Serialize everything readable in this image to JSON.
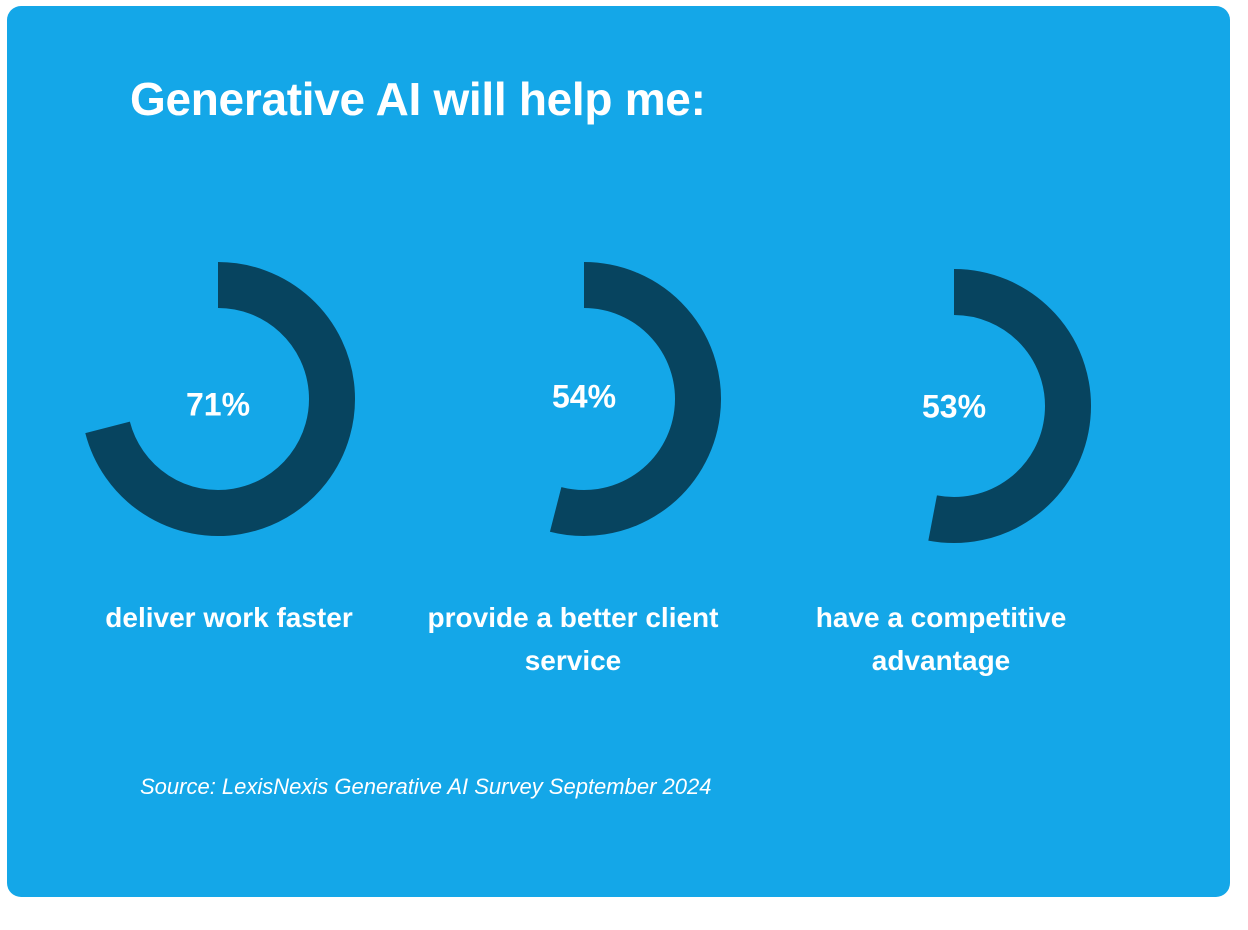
{
  "colors": {
    "background": "#14a7e8",
    "arc": "#07445f",
    "text": "#ffffff"
  },
  "chart_data": {
    "type": "pie",
    "title": "Generative AI will help me:",
    "series": [
      {
        "label": "deliver work faster",
        "value": 71,
        "display": "71%"
      },
      {
        "label": "provide a better client service",
        "value": 54,
        "display": "54%"
      },
      {
        "label": "have a competitive advantage",
        "value": 53,
        "display": "53%"
      }
    ],
    "source": "Source: LexisNexis Generative AI Survey September 2024"
  }
}
